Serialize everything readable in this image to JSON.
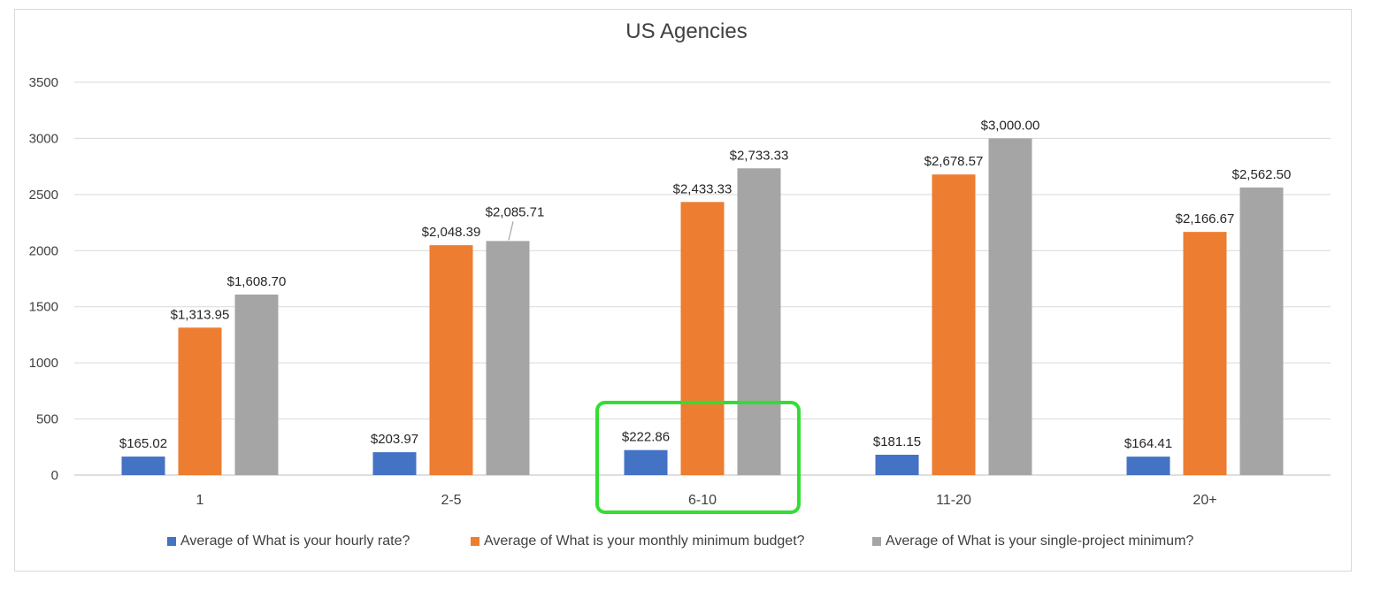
{
  "chart_data": {
    "type": "bar",
    "title": "US Agencies",
    "xlabel": "",
    "ylabel": "",
    "categories": [
      "1",
      "2-5",
      "6-10",
      "11-20",
      "20+"
    ],
    "ylim": [
      0,
      3500
    ],
    "yticks": [
      "0",
      "500",
      "1000",
      "1500",
      "2000",
      "2500",
      "3000",
      "3500"
    ],
    "grid": true,
    "legend_position": "bottom",
    "series": [
      {
        "name": "Average of What is your hourly rate?",
        "color": "#4472c4",
        "values": [
          165.02,
          203.97,
          222.86,
          181.15,
          164.41
        ],
        "labels": [
          "$165.02",
          "$203.97",
          "$222.86",
          "$181.15",
          "$164.41"
        ]
      },
      {
        "name": "Average of What is your monthly minimum budget?",
        "color": "#ed7d31",
        "values": [
          1313.95,
          2048.39,
          2433.33,
          2678.57,
          2166.67
        ],
        "labels": [
          "$1,313.95",
          "$2,048.39",
          "$2,433.33",
          "$2,678.57",
          "$2,166.67"
        ]
      },
      {
        "name": "Average of What is your single-project minimum?",
        "color": "#a5a5a5",
        "values": [
          1608.7,
          2085.71,
          2733.33,
          3000.0,
          2562.5
        ],
        "labels": [
          "$1,608.70",
          "$2,085.71",
          "$2,733.33",
          "$3,000.00",
          "$2,562.50"
        ]
      }
    ],
    "highlight": {
      "category": "6-10",
      "color": "#33dd33"
    }
  }
}
